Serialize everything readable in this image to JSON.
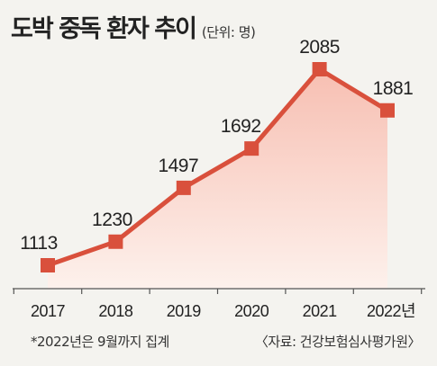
{
  "chart_data": {
    "type": "area",
    "title": "도박 중독 환자 추이",
    "unit_label": "(단위: 명)",
    "categories": [
      "2017",
      "2018",
      "2019",
      "2020",
      "2021",
      "2022년"
    ],
    "values": [
      1113,
      1230,
      1497,
      1692,
      2085,
      1881
    ],
    "data_labels": [
      "1113",
      "1230",
      "1497",
      "1692",
      "2085",
      "1881"
    ],
    "colors": {
      "line": "#d9503c",
      "marker": "#d9503c",
      "fill_top": "#f7bfb2",
      "fill_bottom": "#fdf1ec",
      "baseline": "#555555"
    },
    "grid": false,
    "legend": "none"
  },
  "footnote": "*2022년은 9월까지 집계",
  "source": "〈자료: 건강보험심사평가원〉"
}
